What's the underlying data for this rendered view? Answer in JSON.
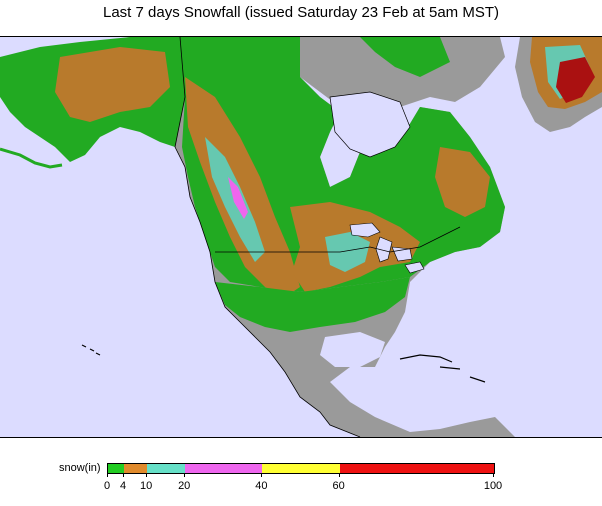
{
  "title": "Last 7 days Snowfall (issued Saturday 23 Feb at 5am MST)",
  "legend": {
    "label": "snow(in)",
    "ticks": [
      "0",
      "4",
      "10",
      "20",
      "40",
      "60",
      "100"
    ],
    "bins": [
      {
        "from": 0,
        "to": 4,
        "color": "#22cc22"
      },
      {
        "from": 4,
        "to": 10,
        "color": "#e08a2c"
      },
      {
        "from": 10,
        "to": 20,
        "color": "#66e0c8"
      },
      {
        "from": 20,
        "to": 40,
        "color": "#ee66ee"
      },
      {
        "from": 40,
        "to": 60,
        "color": "#ffff33"
      },
      {
        "from": 60,
        "to": 100,
        "color": "#ee1111"
      }
    ]
  },
  "colors": {
    "ocean": "#dcdcff",
    "land_bare": "#9a9a9a",
    "snow_light": "#22aa22",
    "snow_moderate": "#b87a2c",
    "snow_heavy": "#66c8b0",
    "snow_extreme": "#aa1111"
  }
}
